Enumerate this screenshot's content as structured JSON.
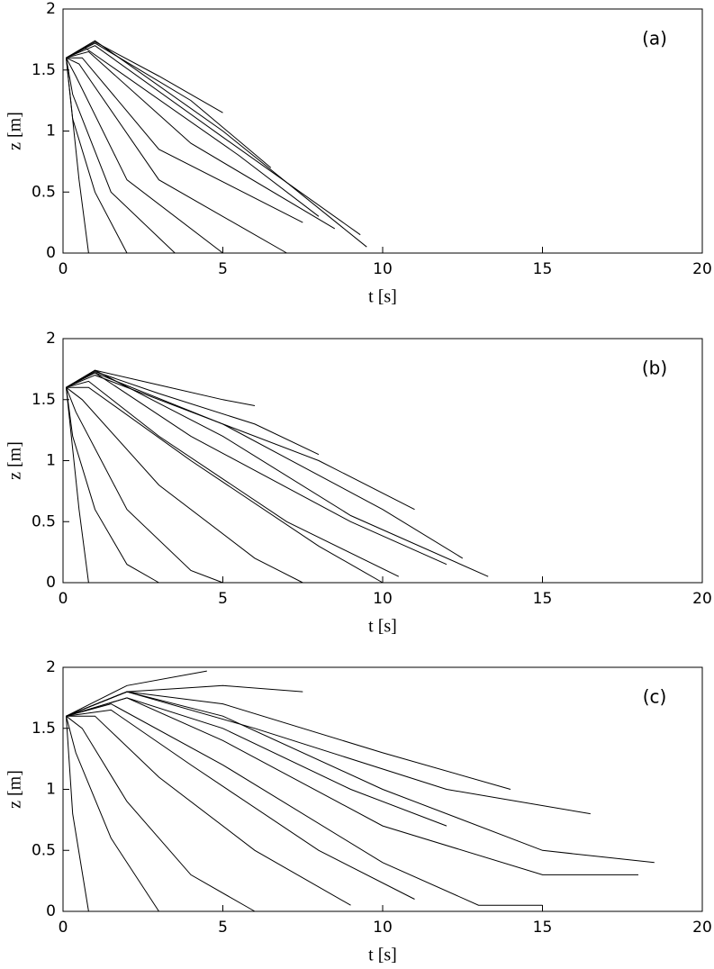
{
  "chart_data": [
    {
      "type": "line",
      "panel_label": "(a)",
      "x_label": "t [s]",
      "y_label": "z [m]",
      "xlim": [
        0,
        20
      ],
      "ylim": [
        0,
        2
      ],
      "xticks": [
        0,
        5,
        10,
        15,
        20
      ],
      "yticks": [
        0,
        0.5,
        1,
        1.5,
        2
      ],
      "color": "#000000",
      "series": [
        {
          "x": [
            0.1,
            1,
            5,
            9.5
          ],
          "values": [
            1.6,
            1.74,
            1.0,
            0.05
          ]
        },
        {
          "x": [
            0.1,
            1,
            5,
            9.3
          ],
          "values": [
            1.6,
            1.7,
            0.95,
            0.15
          ]
        },
        {
          "x": [
            0.1,
            0.8,
            4,
            8.5
          ],
          "values": [
            1.6,
            1.65,
            0.9,
            0.2
          ]
        },
        {
          "x": [
            0.1,
            0.6,
            3,
            7.5
          ],
          "values": [
            1.6,
            1.6,
            0.85,
            0.25
          ]
        },
        {
          "x": [
            0.1,
            0.5,
            3,
            7
          ],
          "values": [
            1.6,
            1.55,
            0.6,
            0
          ]
        },
        {
          "x": [
            0.1,
            0.4,
            2,
            5
          ],
          "values": [
            1.6,
            1.45,
            0.6,
            0
          ]
        },
        {
          "x": [
            0.1,
            0.3,
            1.5,
            3.5
          ],
          "values": [
            1.6,
            1.3,
            0.5,
            0
          ]
        },
        {
          "x": [
            0.1,
            0.3,
            1,
            2
          ],
          "values": [
            1.6,
            1.1,
            0.5,
            0
          ]
        },
        {
          "x": [
            0.1,
            0.5,
            0.8
          ],
          "values": [
            1.6,
            0.6,
            0
          ]
        },
        {
          "x": [
            0.1,
            1,
            4,
            6.5
          ],
          "values": [
            1.6,
            1.72,
            1.25,
            0.7
          ]
        },
        {
          "x": [
            0.1,
            1,
            3,
            5
          ],
          "values": [
            1.6,
            1.73,
            1.45,
            1.15
          ]
        },
        {
          "x": [
            0.1,
            0.7,
            5.5,
            8
          ],
          "values": [
            1.6,
            1.68,
            0.8,
            0.3
          ]
        }
      ]
    },
    {
      "type": "line",
      "panel_label": "(b)",
      "x_label": "t [s]",
      "y_label": "z [m]",
      "xlim": [
        0,
        20
      ],
      "ylim": [
        0,
        2
      ],
      "xticks": [
        0,
        5,
        10,
        15,
        20
      ],
      "yticks": [
        0,
        0.5,
        1,
        1.5,
        2
      ],
      "color": "#000000",
      "series": [
        {
          "x": [
            0.1,
            1,
            5,
            9,
            13.3
          ],
          "values": [
            1.6,
            1.74,
            1.2,
            0.55,
            0.05
          ]
        },
        {
          "x": [
            0.1,
            1,
            5,
            10,
            12.5
          ],
          "values": [
            1.6,
            1.72,
            1.3,
            0.6,
            0.2
          ]
        },
        {
          "x": [
            0.1,
            1,
            4,
            8,
            11
          ],
          "values": [
            1.6,
            1.7,
            1.4,
            1.0,
            0.6
          ]
        },
        {
          "x": [
            0.1,
            1,
            3,
            6,
            8
          ],
          "values": [
            1.6,
            1.73,
            1.55,
            1.3,
            1.05
          ]
        },
        {
          "x": [
            0.1,
            0.8,
            4,
            8,
            10
          ],
          "values": [
            1.6,
            1.6,
            1.0,
            0.3,
            0
          ]
        },
        {
          "x": [
            0.1,
            0.6,
            3,
            6,
            7.5
          ],
          "values": [
            1.6,
            1.5,
            0.8,
            0.2,
            0
          ]
        },
        {
          "x": [
            0.1,
            0.4,
            2,
            4,
            5
          ],
          "values": [
            1.6,
            1.4,
            0.6,
            0.1,
            0
          ]
        },
        {
          "x": [
            0.1,
            0.3,
            1,
            2,
            3
          ],
          "values": [
            1.6,
            1.2,
            0.6,
            0.15,
            0
          ]
        },
        {
          "x": [
            0.1,
            0.5,
            0.8
          ],
          "values": [
            1.6,
            0.6,
            0
          ]
        },
        {
          "x": [
            0.1,
            1,
            3,
            5,
            6
          ],
          "values": [
            1.6,
            1.74,
            1.62,
            1.5,
            1.45
          ]
        },
        {
          "x": [
            0.1,
            1,
            4,
            9,
            12
          ],
          "values": [
            1.6,
            1.72,
            1.2,
            0.5,
            0.15
          ]
        },
        {
          "x": [
            0.1,
            0.8,
            3,
            7,
            10.5
          ],
          "values": [
            1.6,
            1.65,
            1.2,
            0.5,
            0.05
          ]
        }
      ]
    },
    {
      "type": "line",
      "panel_label": "(c)",
      "x_label": "t [s]",
      "y_label": "z [m]",
      "xlim": [
        0,
        20
      ],
      "ylim": [
        0,
        2
      ],
      "xticks": [
        0,
        5,
        10,
        15,
        20
      ],
      "yticks": [
        0,
        0.5,
        1,
        1.5,
        2
      ],
      "color": "#000000",
      "series": [
        {
          "x": [
            0.1,
            2,
            5,
            10,
            15,
            18.5
          ],
          "values": [
            1.6,
            1.8,
            1.6,
            1.0,
            0.5,
            0.4
          ]
        },
        {
          "x": [
            0.1,
            2,
            5,
            10,
            15,
            18
          ],
          "values": [
            1.6,
            1.75,
            1.4,
            0.7,
            0.3,
            0.3
          ]
        },
        {
          "x": [
            0.1,
            1.5,
            5,
            10,
            13,
            15
          ],
          "values": [
            1.6,
            1.7,
            1.2,
            0.4,
            0.05,
            0.05
          ]
        },
        {
          "x": [
            0.1,
            1.5,
            4,
            8,
            11
          ],
          "values": [
            1.6,
            1.65,
            1.2,
            0.5,
            0.1
          ]
        },
        {
          "x": [
            0.1,
            1,
            3,
            6,
            9
          ],
          "values": [
            1.6,
            1.6,
            1.1,
            0.5,
            0.05
          ]
        },
        {
          "x": [
            0.1,
            0.6,
            2,
            4,
            6
          ],
          "values": [
            1.6,
            1.5,
            0.9,
            0.3,
            0
          ]
        },
        {
          "x": [
            0.1,
            0.4,
            1.5,
            3
          ],
          "values": [
            1.6,
            1.3,
            0.6,
            0
          ]
        },
        {
          "x": [
            0.1,
            0.3,
            0.8
          ],
          "values": [
            1.6,
            0.8,
            0
          ]
        },
        {
          "x": [
            0.1,
            2,
            4.5
          ],
          "values": [
            1.6,
            1.85,
            1.97
          ]
        },
        {
          "x": [
            0.1,
            2,
            5,
            7.5
          ],
          "values": [
            1.6,
            1.8,
            1.85,
            1.8
          ]
        },
        {
          "x": [
            0.1,
            2,
            5,
            10,
            14
          ],
          "values": [
            1.6,
            1.8,
            1.7,
            1.3,
            1.0
          ]
        },
        {
          "x": [
            0.1,
            2,
            6,
            12,
            16.5
          ],
          "values": [
            1.6,
            1.8,
            1.5,
            1.0,
            0.8
          ]
        },
        {
          "x": [
            0.1,
            2,
            5,
            9,
            12
          ],
          "values": [
            1.6,
            1.75,
            1.5,
            1.0,
            0.7
          ]
        }
      ]
    }
  ]
}
